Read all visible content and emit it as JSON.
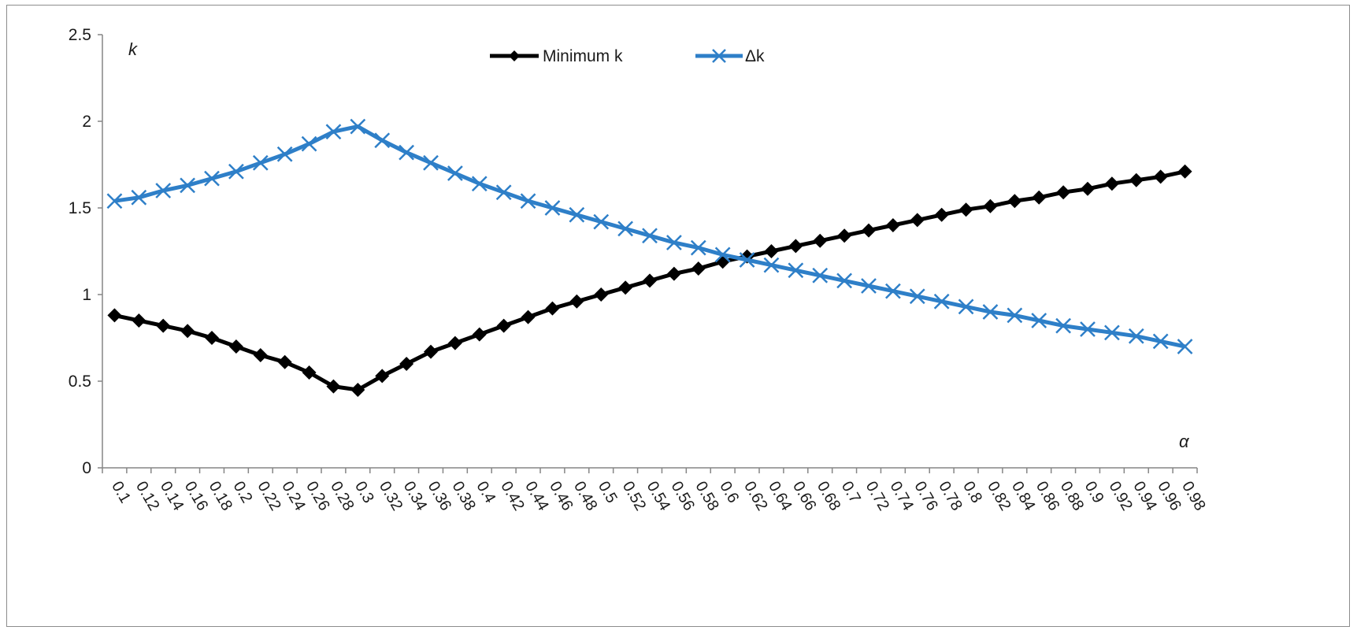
{
  "chart_data": {
    "type": "line",
    "xlabel": "α",
    "ylabel": "k",
    "ylim": [
      0,
      2.5
    ],
    "yticks": [
      "0",
      "0.5",
      "1",
      "1.5",
      "2",
      "2.5"
    ],
    "grid": false,
    "legend_position": "top-center",
    "x": [
      "0.1",
      "0.12",
      "0.14",
      "0.16",
      "0.18",
      "0.2",
      "0.22",
      "0.24",
      "0.26",
      "0.28",
      "0.3",
      "0.32",
      "0.34",
      "0.36",
      "0.38",
      "0.4",
      "0.42",
      "0.44",
      "0.46",
      "0.48",
      "0.5",
      "0.52",
      "0.54",
      "0.56",
      "0.58",
      "0.6",
      "0.62",
      "0.64",
      "0.66",
      "0.68",
      "0.7",
      "0.72",
      "0.74",
      "0.76",
      "0.78",
      "0.8",
      "0.82",
      "0.84",
      "0.86",
      "0.88",
      "0.9",
      "0.92",
      "0.94",
      "0.96",
      "0.98"
    ],
    "series": [
      {
        "name": "Minimum k",
        "color": "#000000",
        "marker": "diamond",
        "values": [
          0.88,
          0.85,
          0.82,
          0.79,
          0.75,
          0.7,
          0.65,
          0.61,
          0.55,
          0.47,
          0.45,
          0.53,
          0.6,
          0.67,
          0.72,
          0.77,
          0.82,
          0.87,
          0.92,
          0.96,
          1.0,
          1.04,
          1.08,
          1.12,
          1.15,
          1.19,
          1.22,
          1.25,
          1.28,
          1.31,
          1.34,
          1.37,
          1.4,
          1.43,
          1.46,
          1.49,
          1.51,
          1.54,
          1.56,
          1.59,
          1.61,
          1.64,
          1.66,
          1.68,
          1.71
        ]
      },
      {
        "name": "Δk",
        "color": "#2e7fc8",
        "marker": "x",
        "values": [
          1.54,
          1.56,
          1.6,
          1.63,
          1.67,
          1.71,
          1.76,
          1.81,
          1.87,
          1.94,
          1.97,
          1.89,
          1.82,
          1.76,
          1.7,
          1.64,
          1.59,
          1.54,
          1.5,
          1.46,
          1.42,
          1.38,
          1.34,
          1.3,
          1.27,
          1.23,
          1.2,
          1.17,
          1.14,
          1.11,
          1.08,
          1.05,
          1.02,
          0.99,
          0.96,
          0.93,
          0.9,
          0.88,
          0.85,
          0.82,
          0.8,
          0.78,
          0.76,
          0.73,
          0.7
        ]
      }
    ]
  }
}
